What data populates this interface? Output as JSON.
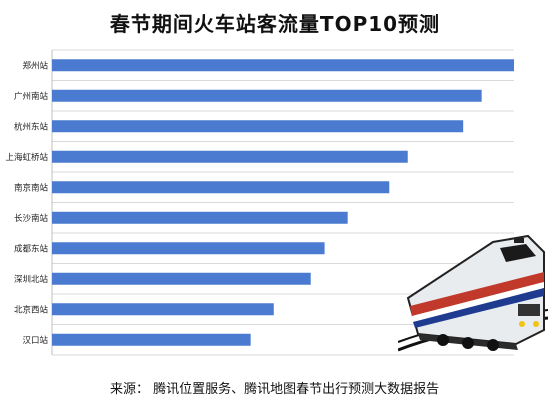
{
  "chart_data": {
    "type": "bar",
    "orientation": "horizontal",
    "title": "春节期间火车站客流量TOP10预测",
    "categories": [
      "郑州站",
      "广州南站",
      "杭州东站",
      "上海虹桥站",
      "南京南站",
      "长沙南站",
      "成都东站",
      "深圳北站",
      "北京西站",
      "汉口站"
    ],
    "values": [
      100,
      93,
      89,
      77,
      73,
      64,
      59,
      56,
      48,
      43
    ],
    "xlim": [
      0,
      100
    ],
    "grid": true,
    "legend": "none",
    "bar_color": "#4a7bd1"
  },
  "source": "来源：  腾讯位置服务、腾讯地图春节出行预测大数据报告"
}
